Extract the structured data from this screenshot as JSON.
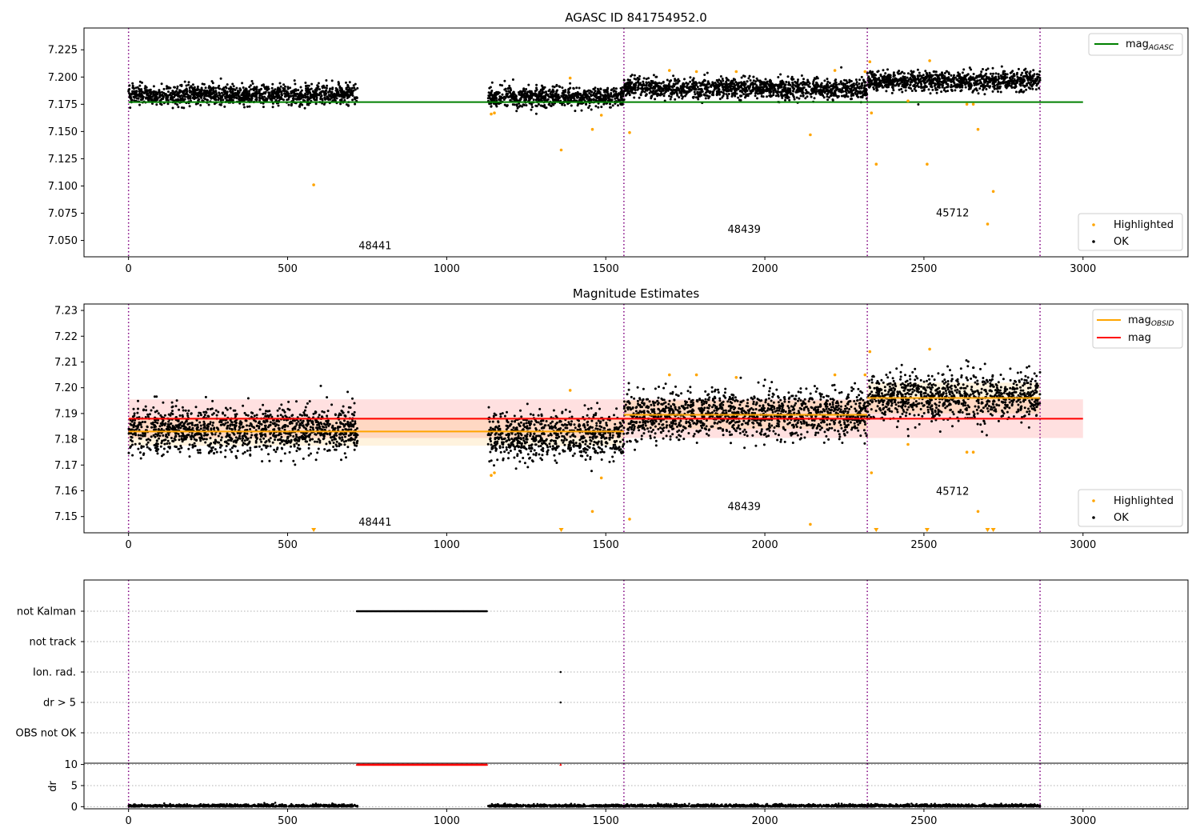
{
  "chart_data": [
    {
      "type": "scatter",
      "title": "AGASC ID 841754952.0",
      "xlabel": "",
      "ylabel": "",
      "xlim": [
        -140,
        3330
      ],
      "ylim": [
        7.035,
        7.245
      ],
      "xticks": [
        0,
        500,
        1000,
        1500,
        2000,
        2500,
        3000
      ],
      "xtick_labels": [
        "0",
        "500",
        "1000",
        "1500",
        "2000",
        "2500",
        "3000"
      ],
      "yticks": [
        7.05,
        7.075,
        7.1,
        7.125,
        7.15,
        7.175,
        7.2,
        7.225
      ],
      "ytick_labels": [
        "7.050",
        "7.075",
        "7.100",
        "7.125",
        "7.150",
        "7.175",
        "7.200",
        "7.225"
      ],
      "obsid_boundaries": [
        0,
        1557,
        2322,
        2865
      ],
      "obsid_labels": [
        {
          "text": "48441",
          "x": 775,
          "y": 7.042
        },
        {
          "text": "48439",
          "x": 1935,
          "y": 7.057
        },
        {
          "text": "45712",
          "x": 2590,
          "y": 7.072
        }
      ],
      "mag_agasc": {
        "value": 7.177,
        "x_range": [
          0,
          3000
        ]
      },
      "ok_segments": [
        {
          "x_range": [
            0,
            720
          ],
          "mean": 7.1835,
          "spread": 0.0045
        },
        {
          "x_range": [
            1130,
            1557
          ],
          "mean": 7.1815,
          "spread": 0.0045
        },
        {
          "x_range": [
            1557,
            2322
          ],
          "mean": 7.1895,
          "spread": 0.0045
        },
        {
          "x_range": [
            2322,
            2865
          ],
          "mean": 7.1965,
          "spread": 0.0045
        }
      ],
      "highlighted_points": [
        {
          "x": 582,
          "y": 7.101
        },
        {
          "x": 1140,
          "y": 7.166
        },
        {
          "x": 1150,
          "y": 7.167
        },
        {
          "x": 1360,
          "y": 7.133
        },
        {
          "x": 1388,
          "y": 7.199
        },
        {
          "x": 1458,
          "y": 7.152
        },
        {
          "x": 1486,
          "y": 7.165
        },
        {
          "x": 1575,
          "y": 7.149
        },
        {
          "x": 1700,
          "y": 7.206
        },
        {
          "x": 1785,
          "y": 7.205
        },
        {
          "x": 1910,
          "y": 7.205
        },
        {
          "x": 2143,
          "y": 7.147
        },
        {
          "x": 2220,
          "y": 7.206
        },
        {
          "x": 2315,
          "y": 7.205
        },
        {
          "x": 2330,
          "y": 7.214
        },
        {
          "x": 2335,
          "y": 7.167
        },
        {
          "x": 2350,
          "y": 7.12
        },
        {
          "x": 2450,
          "y": 7.178
        },
        {
          "x": 2510,
          "y": 7.12
        },
        {
          "x": 2518,
          "y": 7.215
        },
        {
          "x": 2635,
          "y": 7.175
        },
        {
          "x": 2655,
          "y": 7.175
        },
        {
          "x": 2670,
          "y": 7.152
        },
        {
          "x": 2700,
          "y": 7.065
        },
        {
          "x": 2718,
          "y": 7.095
        }
      ],
      "legend_upper": [
        {
          "label": "mag",
          "sub": "AGASC",
          "color": "#008000"
        }
      ],
      "legend_lower": [
        {
          "label": "Highlighted",
          "color": "#ffa500"
        },
        {
          "label": "OK",
          "color": "#000000"
        }
      ]
    },
    {
      "type": "scatter",
      "title": "Magnitude Estimates",
      "xlabel": "",
      "ylabel": "",
      "xlim": [
        -140,
        3330
      ],
      "ylim": [
        7.1437,
        7.2325
      ],
      "xticks": [
        0,
        500,
        1000,
        1500,
        2000,
        2500,
        3000
      ],
      "xtick_labels": [
        "0",
        "500",
        "1000",
        "1500",
        "2000",
        "2500",
        "3000"
      ],
      "yticks": [
        7.15,
        7.16,
        7.17,
        7.18,
        7.19,
        7.2,
        7.21,
        7.22,
        7.23
      ],
      "ytick_labels": [
        "7.15",
        "7.16",
        "7.17",
        "7.18",
        "7.19",
        "7.20",
        "7.21",
        "7.22",
        "7.23"
      ],
      "obsid_boundaries": [
        0,
        1557,
        2322,
        2865
      ],
      "obsid_labels": [
        {
          "text": "48441",
          "x": 775,
          "y": 7.1465
        },
        {
          "text": "48439",
          "x": 1935,
          "y": 7.1525
        },
        {
          "text": "45712",
          "x": 2590,
          "y": 7.1585
        }
      ],
      "mag": {
        "value": 7.188,
        "band": [
          7.1805,
          7.1955
        ],
        "x_range": [
          0,
          3000
        ]
      },
      "mag_obsid": [
        {
          "x_range": [
            0,
            1557
          ],
          "value": 7.183,
          "band": [
            7.1775,
            7.1885
          ]
        },
        {
          "x_range": [
            1557,
            2322
          ],
          "value": 7.1895,
          "band": [
            7.184,
            7.195
          ]
        },
        {
          "x_range": [
            2322,
            2865
          ],
          "value": 7.196,
          "band": [
            7.19,
            7.202
          ]
        }
      ],
      "ok_segments": [
        {
          "x_range": [
            0,
            720
          ],
          "mean": 7.1835,
          "spread": 0.0045
        },
        {
          "x_range": [
            1130,
            1557
          ],
          "mean": 7.1815,
          "spread": 0.0045
        },
        {
          "x_range": [
            1557,
            2322
          ],
          "mean": 7.1895,
          "spread": 0.0045
        },
        {
          "x_range": [
            2322,
            2865
          ],
          "mean": 7.1965,
          "spread": 0.0045
        }
      ],
      "highlighted_points": [
        {
          "x": 1140,
          "y": 7.166
        },
        {
          "x": 1150,
          "y": 7.167
        },
        {
          "x": 1388,
          "y": 7.199
        },
        {
          "x": 1458,
          "y": 7.152
        },
        {
          "x": 1486,
          "y": 7.165
        },
        {
          "x": 1575,
          "y": 7.149
        },
        {
          "x": 1700,
          "y": 7.205
        },
        {
          "x": 1785,
          "y": 7.205
        },
        {
          "x": 1910,
          "y": 7.204
        },
        {
          "x": 2143,
          "y": 7.147
        },
        {
          "x": 2220,
          "y": 7.205
        },
        {
          "x": 2315,
          "y": 7.205
        },
        {
          "x": 2330,
          "y": 7.214
        },
        {
          "x": 2335,
          "y": 7.167
        },
        {
          "x": 2450,
          "y": 7.178
        },
        {
          "x": 2518,
          "y": 7.215
        },
        {
          "x": 2635,
          "y": 7.175
        },
        {
          "x": 2655,
          "y": 7.175
        },
        {
          "x": 2670,
          "y": 7.152
        }
      ],
      "below_range_markers": [
        582,
        1360,
        2350,
        2510,
        2700,
        2718
      ],
      "legend_upper": [
        {
          "label": "mag",
          "sub": "OBSID",
          "color": "#ffa500"
        },
        {
          "label": "mag",
          "sub": "",
          "color": "#ff0000"
        }
      ],
      "legend_lower": [
        {
          "label": "Highlighted",
          "color": "#ffa500"
        },
        {
          "label": "OK",
          "color": "#000000"
        }
      ]
    },
    {
      "type": "scatter",
      "title": "",
      "xlim": [
        -140,
        3330
      ],
      "flag_rows": [
        "not Kalman",
        "not track",
        "Ion. rad.",
        "dr > 5",
        "OBS not OK"
      ],
      "flags": [
        {
          "row": "not Kalman",
          "x_range": [
            718,
            1128
          ]
        },
        {
          "row": "Ion. rad.",
          "x": 1358
        },
        {
          "row": "dr > 5",
          "x": 1358
        }
      ],
      "obsid_boundaries": [
        0,
        1557,
        2322,
        2865
      ]
    },
    {
      "type": "scatter",
      "title": "",
      "xlabel": "",
      "ylabel": "dr",
      "xlim": [
        -140,
        3330
      ],
      "ylim": [
        -0.5,
        10.3
      ],
      "xticks": [
        0,
        500,
        1000,
        1500,
        2000,
        2500,
        3000
      ],
      "xtick_labels": [
        "0",
        "500",
        "1000",
        "1500",
        "2000",
        "2500",
        "3000"
      ],
      "yticks": [
        0,
        5,
        10
      ],
      "ytick_labels": [
        "0",
        "5",
        "10"
      ],
      "obsid_boundaries": [
        0,
        1557,
        2322,
        2865
      ],
      "dr_near_zero_ranges": [
        [
          0,
          720
        ],
        [
          1130,
          2865
        ]
      ],
      "dr_saturated": [
        {
          "x_range": [
            718,
            1128
          ],
          "y": 10
        },
        {
          "x": 1358,
          "y": 10
        }
      ]
    }
  ]
}
